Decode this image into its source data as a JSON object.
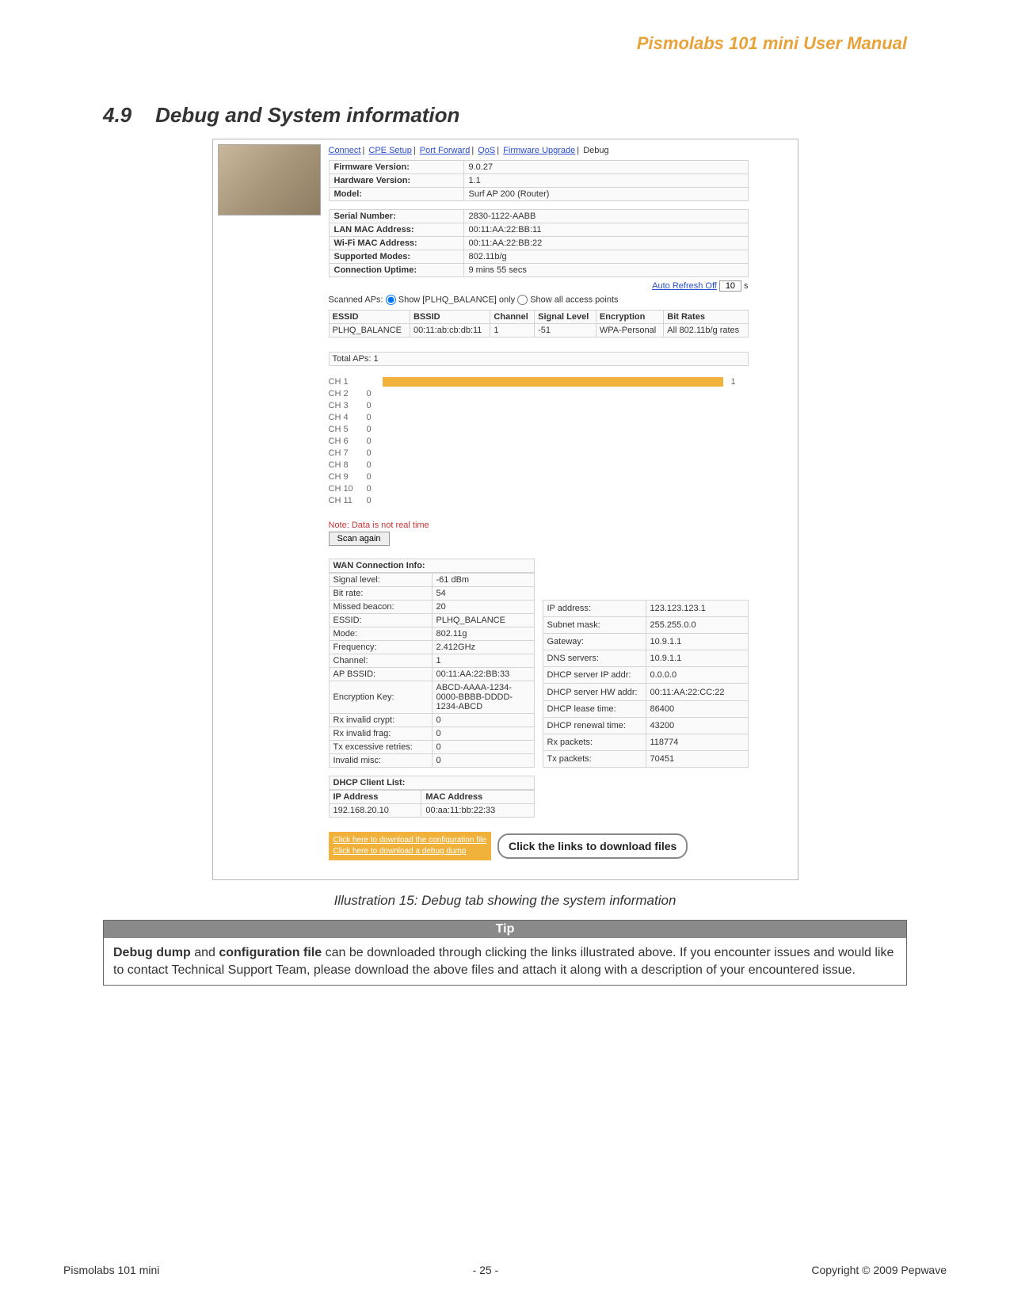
{
  "header": {
    "title": "Pismolabs 101 mini User Manual"
  },
  "section": {
    "num": "4.9",
    "title": "Debug and System information"
  },
  "nav": {
    "items": [
      "Connect",
      "CPE Setup",
      "Port Forward",
      "QoS",
      "Firmware Upgrade"
    ],
    "current": "Debug"
  },
  "sysinfo": {
    "rows1": [
      {
        "label": "Firmware Version:",
        "value": "9.0.27"
      },
      {
        "label": "Hardware Version:",
        "value": "1.1"
      },
      {
        "label": "Model:",
        "value": "Surf AP 200 (Router)"
      }
    ],
    "rows2": [
      {
        "label": "Serial Number:",
        "value": "2830-1122-AABB"
      },
      {
        "label": "LAN MAC Address:",
        "value": "00:11:AA:22:BB:11"
      },
      {
        "label": "Wi-Fi MAC Address:",
        "value": "00:11:AA:22:BB:22"
      },
      {
        "label": "Supported Modes:",
        "value": "802.11b/g"
      },
      {
        "label": "Connection Uptime:",
        "value": "9 mins 55 secs"
      }
    ]
  },
  "autorefresh": {
    "label": "Auto Refresh Off",
    "value": "10",
    "suffix": "s"
  },
  "scanned": {
    "prefix": "Scanned APs:",
    "opt1": "Show [PLHQ_BALANCE] only",
    "opt2": "Show all access points"
  },
  "ap_table": {
    "headers": [
      "ESSID",
      "BSSID",
      "Channel",
      "Signal Level",
      "Encryption",
      "Bit Rates"
    ],
    "row": [
      "PLHQ_BALANCE",
      "00:11:ab:cb:db:11",
      "1",
      "-51",
      "WPA-Personal",
      "All 802.11b/g rates"
    ]
  },
  "total_aps": "Total APs: 1",
  "channels": [
    {
      "label": "CH 1",
      "value": "",
      "bar": 430,
      "count": "1"
    },
    {
      "label": "CH 2",
      "value": "0",
      "bar": 0,
      "count": ""
    },
    {
      "label": "CH 3",
      "value": "0",
      "bar": 0,
      "count": ""
    },
    {
      "label": "CH 4",
      "value": "0",
      "bar": 0,
      "count": ""
    },
    {
      "label": "CH 5",
      "value": "0",
      "bar": 0,
      "count": ""
    },
    {
      "label": "CH 6",
      "value": "0",
      "bar": 0,
      "count": ""
    },
    {
      "label": "CH 7",
      "value": "0",
      "bar": 0,
      "count": ""
    },
    {
      "label": "CH 8",
      "value": "0",
      "bar": 0,
      "count": ""
    },
    {
      "label": "CH 9",
      "value": "0",
      "bar": 0,
      "count": ""
    },
    {
      "label": "CH 10",
      "value": "0",
      "bar": 0,
      "count": ""
    },
    {
      "label": "CH 11",
      "value": "0",
      "bar": 0,
      "count": ""
    }
  ],
  "bar_color": "#f0b23b",
  "note": "Note: Data is not real time",
  "scan_btn": "Scan again",
  "wan_head": "WAN Connection Info:",
  "wan_left": [
    {
      "label": "Signal level:",
      "value": "-61 dBm"
    },
    {
      "label": "Bit rate:",
      "value": "54"
    },
    {
      "label": "Missed beacon:",
      "value": "20"
    },
    {
      "label": "ESSID:",
      "value": "PLHQ_BALANCE"
    },
    {
      "label": "Mode:",
      "value": "802.11g"
    },
    {
      "label": "Frequency:",
      "value": "2.412GHz"
    },
    {
      "label": "Channel:",
      "value": "1"
    },
    {
      "label": "AP BSSID:",
      "value": "00:11:AA:22:BB:33"
    },
    {
      "label": "Encryption Key:",
      "value": "ABCD-AAAA-1234-0000-BBBB-DDDD-1234-ABCD"
    },
    {
      "label": "Rx invalid crypt:",
      "value": "0"
    },
    {
      "label": "Rx invalid frag:",
      "value": "0"
    },
    {
      "label": "Tx excessive retries:",
      "value": "0"
    },
    {
      "label": "Invalid misc:",
      "value": "0"
    }
  ],
  "wan_right": [
    {
      "label": "IP address:",
      "value": "123.123.123.1"
    },
    {
      "label": "Subnet mask:",
      "value": "255.255.0.0"
    },
    {
      "label": "Gateway:",
      "value": "10.9.1.1"
    },
    {
      "label": "DNS servers:",
      "value": "10.9.1.1"
    },
    {
      "label": "DHCP server IP addr:",
      "value": "0.0.0.0"
    },
    {
      "label": "DHCP server HW addr:",
      "value": "00:11:AA:22:CC:22"
    },
    {
      "label": "DHCP lease time:",
      "value": "86400"
    },
    {
      "label": "DHCP renewal time:",
      "value": "43200"
    },
    {
      "label": "Rx packets:",
      "value": "118774"
    },
    {
      "label": "Tx packets:",
      "value": "70451"
    }
  ],
  "dhcp": {
    "head": "DHCP Client List:",
    "cols": [
      "IP Address",
      "MAC Address"
    ],
    "row": [
      "192.168.20.10",
      "00:aa:11:bb:22:33"
    ]
  },
  "download": {
    "link1": "Click here to download the configuration file",
    "link2": "Click here to download a debug dump",
    "callout": "Click the links to download files"
  },
  "caption": "Illustration 15: Debug tab showing the system information",
  "tip": {
    "head": "Tip",
    "b1": "Debug dump",
    "mid": " and ",
    "b2": "configuration file",
    "rest": " can be downloaded through clicking the links illustrated above. If you encounter issues and would like to contact Technical Support Team, please download the above files and attach it along with a description of your encountered issue."
  },
  "footer": {
    "left": "Pismolabs 101 mini",
    "center": "- 25 -",
    "right": "Copyright © 2009 Pepwave"
  }
}
